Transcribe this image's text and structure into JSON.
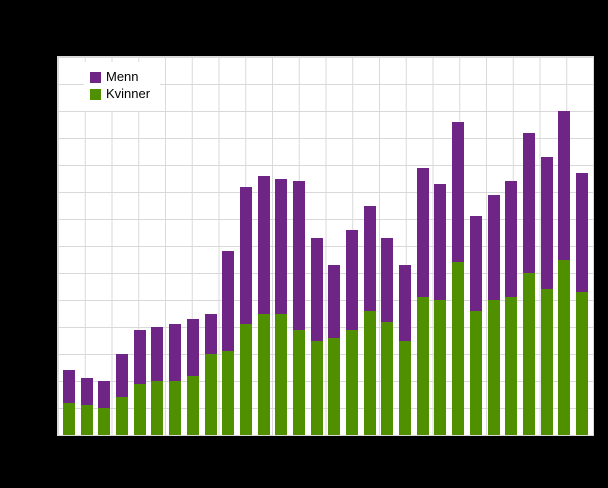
{
  "colors": {
    "page_background": "#000000",
    "plot_background": "#ffffff",
    "grid": "#d9d9d9",
    "menn": "#6e2585",
    "kvinner": "#4f8f00"
  },
  "chart_data": {
    "type": "bar",
    "stacked": true,
    "title": "",
    "xlabel": "",
    "ylabel": "",
    "ylim": [
      0,
      70
    ],
    "grid": true,
    "legend_position": "top-left",
    "n_bars": 30,
    "series": [
      {
        "name": "Menn",
        "color": "#6e2585",
        "values": [
          6,
          5,
          5,
          8,
          10,
          10,
          10.5,
          10.5,
          7.5,
          18.5,
          25.5,
          25.5,
          25,
          27.5,
          19,
          13.5,
          18.5,
          19.5,
          15.5,
          14,
          24,
          21.5,
          26,
          17.5,
          19.5,
          21.5,
          26,
          24.5,
          27.5,
          22
        ]
      },
      {
        "name": "Kvinner",
        "color": "#4f8f00",
        "values": [
          6,
          5.5,
          5,
          7,
          9.5,
          10,
          10,
          11,
          15,
          15.5,
          20.5,
          22.5,
          22.5,
          19.5,
          17.5,
          18,
          19.5,
          23,
          21,
          17.5,
          25.5,
          25,
          32,
          23,
          25,
          25.5,
          30,
          27,
          32.5,
          26.5
        ]
      }
    ]
  }
}
